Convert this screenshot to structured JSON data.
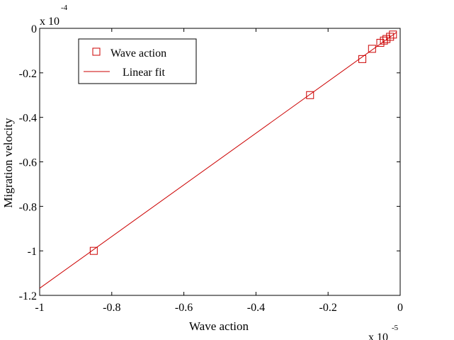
{
  "chart_data": {
    "type": "scatter",
    "xlabel": "Wave action",
    "ylabel": "Migration velocity",
    "x_multiplier_label": "x 10",
    "x_multiplier_exponent": "-5",
    "y_multiplier_label": "x 10",
    "y_multiplier_exponent": "-4",
    "xlim": [
      -1,
      0
    ],
    "ylim": [
      -1.2,
      0
    ],
    "xticks": [
      -1,
      -0.8,
      -0.6,
      -0.4,
      -0.2,
      0
    ],
    "xtick_labels": [
      "-1",
      "-0.8",
      "-0.6",
      "-0.4",
      "-0.2",
      "0"
    ],
    "yticks": [
      -1.2,
      -1,
      -0.8,
      -0.6,
      -0.4,
      -0.2,
      0
    ],
    "ytick_labels": [
      "-1.2",
      "-1",
      "-0.8",
      "-0.6",
      "-0.4",
      "-0.2",
      "0"
    ],
    "grid": false,
    "legend_position": "top-left",
    "series": [
      {
        "name": "Wave action",
        "kind": "markers",
        "marker": "square",
        "color": "#cc0000",
        "x": [
          -0.85,
          -0.25,
          -0.105,
          -0.078,
          -0.055,
          -0.045,
          -0.038,
          -0.028,
          -0.02
        ],
        "y": [
          -1.0,
          -0.3,
          -0.138,
          -0.092,
          -0.065,
          -0.055,
          -0.048,
          -0.038,
          -0.028
        ]
      },
      {
        "name": "Linear fit",
        "kind": "line",
        "color": "#cc0000",
        "x": [
          -1,
          -0.01
        ],
        "y": [
          -1.168,
          -0.018
        ]
      }
    ]
  }
}
